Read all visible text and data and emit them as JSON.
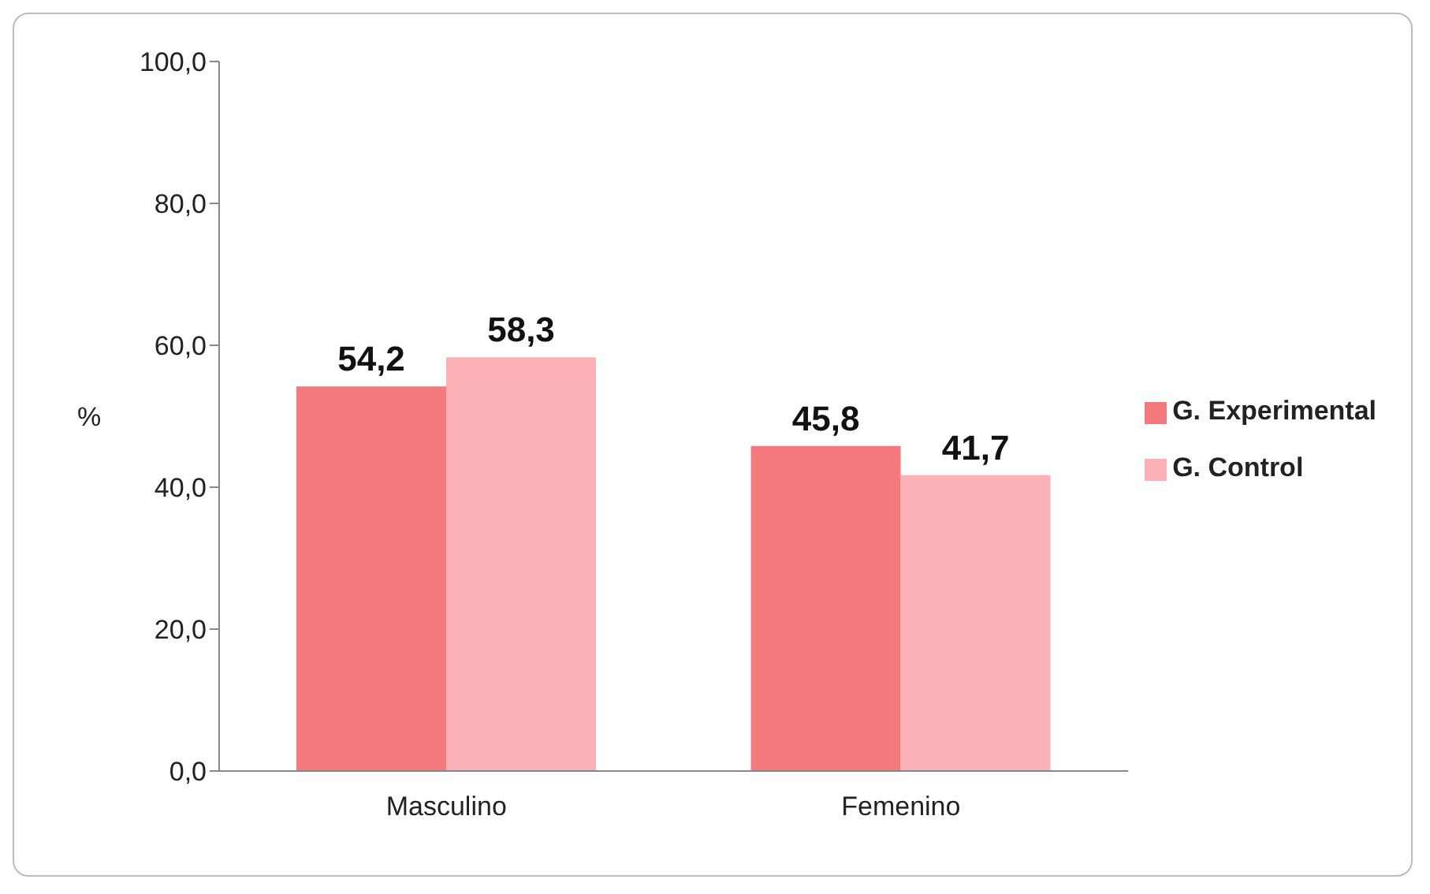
{
  "chart_data": {
    "type": "bar",
    "categories": [
      "Masculino",
      "Femenino"
    ],
    "series": [
      {
        "name": "G. Experimental",
        "color": "#f4797d",
        "values": [
          54.2,
          45.8
        ],
        "value_labels": [
          "54,2",
          "45,8"
        ]
      },
      {
        "name": "G. Control",
        "color": "#fbb1b6",
        "values": [
          58.3,
          41.7
        ],
        "value_labels": [
          "58,3",
          "41,7"
        ]
      }
    ],
    "ylabel": "%",
    "ylim": [
      0,
      100
    ],
    "yticks": [
      {
        "value": 0,
        "label": "0,0"
      },
      {
        "value": 20,
        "label": "20,0"
      },
      {
        "value": 40,
        "label": "40,0"
      },
      {
        "value": 60,
        "label": "60,0"
      },
      {
        "value": 80,
        "label": "80,0"
      },
      {
        "value": 100,
        "label": "100,0"
      }
    ],
    "grid": false,
    "legend": "right"
  }
}
